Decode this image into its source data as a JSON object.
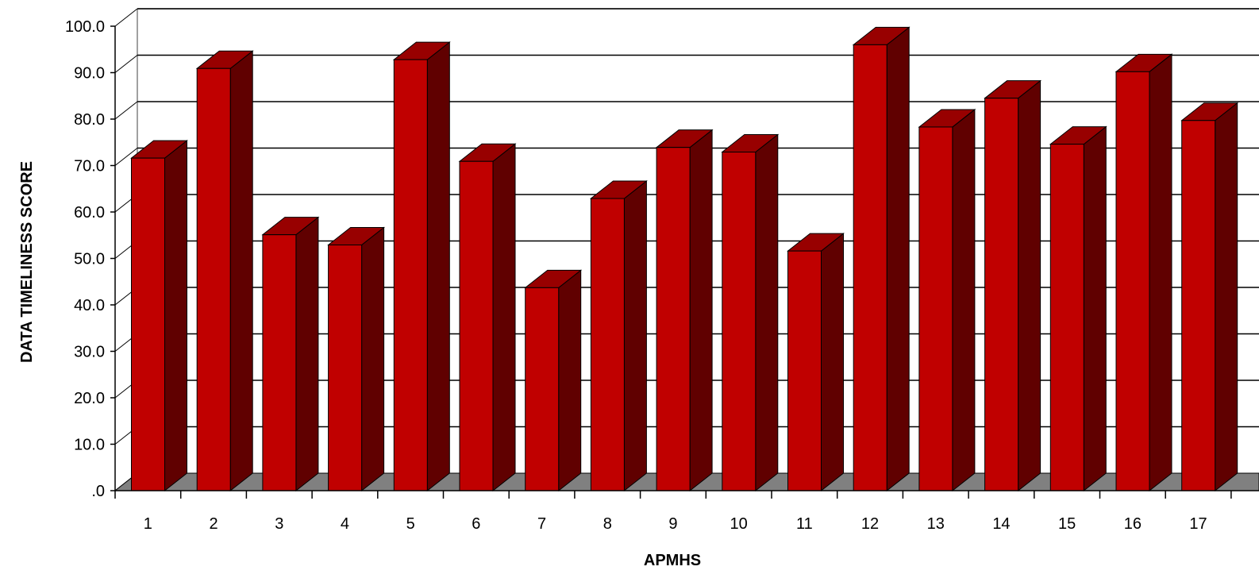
{
  "chart_data": {
    "type": "bar",
    "title": "",
    "xlabel": "APMHS",
    "ylabel": "DATA TIMELINESS SCORE",
    "ylim": [
      0,
      100
    ],
    "yticks": [
      ".0",
      "10.0",
      "20.0",
      "30.0",
      "40.0",
      "50.0",
      "60.0",
      "70.0",
      "80.0",
      "90.0",
      "100.0"
    ],
    "categories": [
      "1",
      "2",
      "3",
      "4",
      "5",
      "6",
      "7",
      "8",
      "9",
      "10",
      "11",
      "12",
      "13",
      "14",
      "15",
      "16",
      "17"
    ],
    "series": [
      {
        "values": [
          71.6,
          90.9,
          55.1,
          52.9,
          92.8,
          70.9,
          43.7,
          62.9,
          73.9,
          72.9,
          51.6,
          96.0,
          78.3,
          84.5,
          74.6,
          90.2,
          79.7
        ]
      }
    ],
    "grid": true,
    "legend": "none",
    "colors": {
      "bar_front": "#c00000",
      "bar_side": "#600000",
      "bar_top": "#980000",
      "floor": "#808080",
      "gridline": "#000000"
    }
  }
}
